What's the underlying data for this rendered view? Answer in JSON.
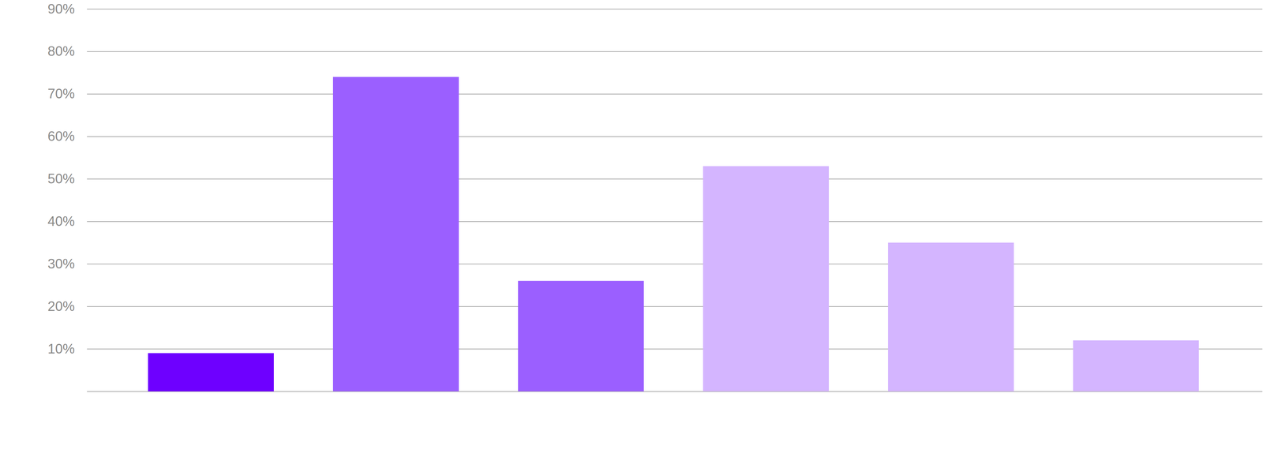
{
  "chart_data": {
    "type": "bar",
    "categories": [
      null,
      null,
      null,
      null,
      null,
      null
    ],
    "values": [
      9,
      74,
      26,
      53,
      35,
      12
    ],
    "colors": [
      "#6e00ff",
      "#9b5fff",
      "#9b5fff",
      "#d4b5ff",
      "#d4b5ff",
      "#d4b5ff"
    ],
    "ylim": [
      0,
      90
    ],
    "yticks": [
      {
        "value": 10,
        "label": "10%"
      },
      {
        "value": 20,
        "label": "20%"
      },
      {
        "value": 30,
        "label": "30%"
      },
      {
        "value": 40,
        "label": "40%"
      },
      {
        "value": 50,
        "label": "50%"
      },
      {
        "value": 60,
        "label": "60%"
      },
      {
        "value": 70,
        "label": "70%"
      },
      {
        "value": 80,
        "label": "80%"
      },
      {
        "value": 90,
        "label": "90%"
      }
    ],
    "grid": true,
    "tick_labels": "y"
  }
}
